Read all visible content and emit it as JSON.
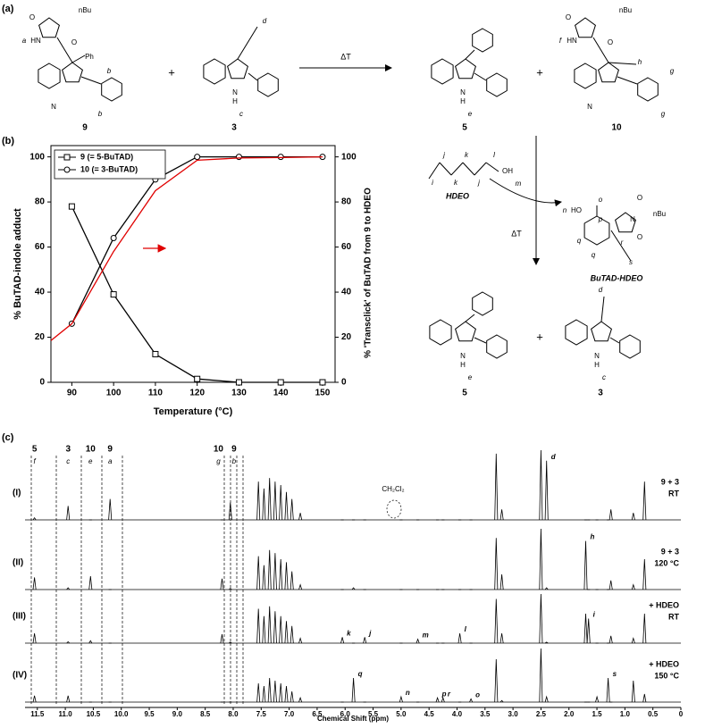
{
  "panel_labels": [
    "(a)",
    "(b)",
    "(c)"
  ],
  "scheme": {
    "compounds": [
      "9",
      "3",
      "5",
      "10",
      "5",
      "3"
    ],
    "plus": [
      "+",
      "+",
      "+"
    ],
    "heat": [
      "ΔT",
      "ΔT"
    ],
    "hdeo": "HDEO",
    "adduct": "BuTAD-HDEO",
    "atoms": [
      "nBu",
      "a",
      "HN",
      "O",
      "O",
      "Ph",
      "N",
      "b",
      "b",
      "d",
      "N",
      "H",
      "c",
      "N",
      "H",
      "e",
      "nBu",
      "f",
      "HN",
      "O",
      "O",
      "h",
      "N",
      "g",
      "g",
      "j",
      "k",
      "l",
      "i",
      "k",
      "j",
      "OH",
      "m",
      "o",
      "n",
      "HO",
      "p",
      "N",
      "nBu",
      "O",
      "O",
      "q",
      "q",
      "r",
      "s",
      "N",
      "H",
      "e",
      "d",
      "N",
      "H",
      "c"
    ]
  },
  "chart_data": [
    {
      "type": "line",
      "xlabel": "Temperature (°C)",
      "ylabel": "% BuTAD-indole adduct",
      "y2label": "% 'Transclick' of BuTAD from 9 to HDEO",
      "x": [
        90,
        100,
        110,
        120,
        130,
        140,
        150
      ],
      "xlim": [
        85,
        153
      ],
      "xticks": [
        90,
        100,
        110,
        120,
        130,
        140,
        150
      ],
      "ylim": [
        0,
        105
      ],
      "yticks": [
        0,
        20,
        40,
        60,
        80,
        100
      ],
      "y2lim": [
        0,
        105
      ],
      "y2ticks": [
        0,
        20,
        40,
        60,
        80,
        100
      ],
      "legend": "upper left",
      "series": [
        {
          "name": "9  (= 5-BuTAD)",
          "color": "#000000",
          "marker": "square",
          "values": [
            78,
            39,
            12.5,
            1.5,
            0,
            0,
            0
          ]
        },
        {
          "name": "10 (= 3-BuTAD)",
          "color": "#000000",
          "marker": "circle",
          "values": [
            26,
            64,
            90,
            100,
            100,
            100,
            100
          ]
        },
        {
          "color": "#e00000",
          "axis": "y2",
          "x": [
            85,
            90,
            100,
            110,
            120,
            130,
            140,
            150
          ],
          "values": [
            18.5,
            26,
            58,
            85,
            98.5,
            99.5,
            99.7,
            100
          ]
        }
      ]
    },
    {
      "type": "spectrum",
      "xlabel": "Chemical Shift (ppm)",
      "xlim": [
        11.72,
        0
      ],
      "xticks": [
        11.5,
        {
          "value": 11,
          "label": "11.0"
        },
        10.5,
        {
          "value": 10,
          "label": "10.0"
        },
        9.5,
        {
          "value": 9,
          "label": "9.0"
        },
        8.5,
        {
          "value": 8,
          "label": "8.0"
        },
        7.5,
        {
          "value": 7,
          "label": "7.0"
        },
        6.5,
        {
          "value": 6,
          "label": "6.0"
        },
        5.5,
        {
          "value": 5,
          "label": "5.0"
        },
        4.5,
        {
          "value": 4,
          "label": "4.0"
        },
        3.5,
        {
          "value": 3,
          "label": "3.0"
        },
        2.5,
        {
          "value": 2,
          "label": "2.0"
        },
        1.5,
        {
          "value": 1,
          "label": "1.0"
        },
        0.5,
        0
      ],
      "x": [
        11.55,
        10.95,
        10.55,
        10.2,
        8.2,
        8.05,
        7.55,
        7.45,
        7.35,
        7.25,
        7.15,
        7.05,
        6.95,
        6.8,
        6.05,
        5.85,
        5.65,
        5.0,
        4.7,
        4.35,
        4.25,
        3.95,
        3.75,
        3.3,
        3.2,
        2.5,
        2.4,
        1.7,
        1.65,
        1.5,
        1.3,
        1.25,
        0.85,
        0.65
      ],
      "series": [
        {
          "name": "(I)",
          "conditions": [
            "9 + 3",
            "RT"
          ],
          "values": [
            3,
            20,
            0,
            30,
            0,
            25,
            55,
            45,
            60,
            55,
            50,
            40,
            30,
            10,
            0,
            0,
            0,
            0,
            0,
            0,
            0,
            0,
            0,
            95,
            15,
            100,
            85,
            0,
            0,
            0,
            0,
            15,
            10,
            55
          ]
        },
        {
          "name": "(II)",
          "conditions": [
            "9 + 3",
            "120 °C"
          ],
          "values": [
            20,
            3,
            22,
            0,
            18,
            2,
            55,
            40,
            65,
            60,
            50,
            45,
            30,
            8,
            0,
            3,
            0,
            0,
            0,
            0,
            0,
            0,
            0,
            85,
            25,
            100,
            3,
            80,
            0,
            0,
            0,
            15,
            8,
            50
          ]
        },
        {
          "name": "(III)",
          "conditions": [
            "+ HDEO",
            "RT"
          ],
          "values": [
            20,
            3,
            5,
            0,
            18,
            2,
            70,
            55,
            75,
            65,
            55,
            45,
            35,
            10,
            12,
            0,
            12,
            0,
            8,
            0,
            0,
            20,
            0,
            90,
            20,
            100,
            2,
            60,
            50,
            0,
            0,
            15,
            10,
            60
          ]
        },
        {
          "name": "(IV)",
          "conditions": [
            "+ HDEO",
            "150 °C"
          ],
          "values": [
            12,
            12,
            0,
            0,
            0,
            0,
            35,
            30,
            45,
            40,
            35,
            30,
            20,
            8,
            0,
            45,
            0,
            10,
            0,
            8,
            8,
            0,
            6,
            80,
            3,
            100,
            10,
            0,
            0,
            10,
            45,
            0,
            40,
            15
          ]
        }
      ],
      "assignments": [
        "5",
        "3",
        "10",
        "9",
        "10",
        "9"
      ],
      "assignment_letters": [
        "f",
        "c",
        "e",
        "a",
        "g",
        "b"
      ],
      "peak_labels": [
        "d",
        "h",
        "i",
        "k",
        "j",
        "m",
        "l",
        "q",
        "n",
        "p",
        "r",
        "o",
        "s"
      ],
      "solvent_label": "CH₂Cl₂"
    }
  ]
}
